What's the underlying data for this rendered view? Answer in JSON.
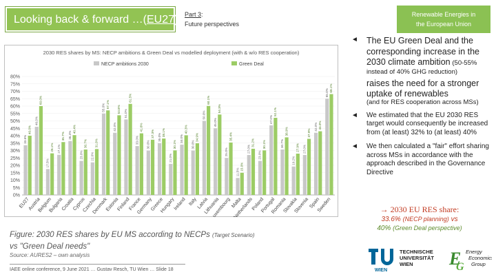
{
  "header": {
    "title_prefix": "Looking back & forward …(",
    "title_ticker": "EU27",
    "title_suffix": ")",
    "part_number": "Part 3",
    "part_colon": ":",
    "part_subtitle": "Future perspectives",
    "right_box_line1": "Renewable Energies in",
    "right_box_line2": "the European Union"
  },
  "colors": {
    "necp": "#c8c8c8",
    "green_deal": "#9ccc65",
    "title_green": "#92c353",
    "accent_red": "#c23b22",
    "accent_green": "#5c8a2a"
  },
  "chart_data": {
    "type": "bar",
    "title": "2030 RES shares by MS: NECP ambitions & Green Deal vs modelled deployment (with & w/o RES cooperation)",
    "legend_position": "top",
    "ylim": [
      0,
      80
    ],
    "yticks": [
      "0%",
      "5%",
      "10%",
      "15%",
      "20%",
      "25%",
      "30%",
      "35%",
      "40%",
      "45%",
      "50%",
      "55%",
      "60%",
      "65%",
      "70%",
      "75%",
      "80%"
    ],
    "categories": [
      "EU27",
      "Austria",
      "Belgium",
      "Bulgaria",
      "Croatia",
      "Cyprus",
      "Czechia",
      "Denmark",
      "Estonia",
      "Finland",
      "France",
      "Germany",
      "Greece",
      "Hungary",
      "Ireland",
      "Italy",
      "Latvia",
      "Lithuania",
      "Luxembourg",
      "Malta",
      "Netherlands",
      "Poland",
      "Portugal",
      "Romania",
      "Slovakia",
      "Slovenia",
      "Spain",
      "Sweden"
    ],
    "series": [
      {
        "name": "NECP ambitions 2030",
        "values": [
          33.6,
          46.0,
          17.5,
          27.1,
          36.4,
          23.0,
          22.0,
          55.0,
          42.0,
          51.0,
          33.0,
          30.0,
          35.0,
          21.0,
          34.0,
          30.0,
          50.0,
          45.0,
          25.0,
          11.5,
          27.0,
          23.0,
          47.0,
          30.7,
          19.2,
          27.0,
          42.0,
          65.0
        ]
      },
      {
        "name": "Green Deal",
        "values": [
          40.0,
          60.0,
          28.1,
          35.7,
          40.4,
          30.7,
          31.0,
          57.1,
          53.8,
          61.5,
          41.6,
          37.3,
          38.1,
          30.1,
          40.3,
          34.9,
          60.1,
          54.3,
          35.4,
          15.0,
          31.2,
          30.1,
          52.1,
          38.9,
          27.9,
          37.9,
          43.0,
          68.1
        ]
      }
    ],
    "data_labels": {
      "necp": [
        "33.6%",
        "46.0%",
        "17.5%",
        "27.1%",
        "36.4%",
        "23.0%",
        "22.0%",
        "55.0%",
        "42.0%",
        "51.0%",
        "33.0%",
        "30.0%",
        "35.0%",
        "21.0%",
        "34.0%",
        "30.0%",
        "50.0%",
        "45.0%",
        "25.0%",
        "11.5%",
        "27.0%",
        "23.0%",
        "47.0%",
        "30.7%",
        "19.2%",
        "27.0%",
        "42.0%",
        "65.0%"
      ],
      "green_deal": [
        "40.0%",
        "60.0%",
        "28.1%",
        "35.7%",
        "40.4%",
        "30.7%",
        "31.0%",
        "57.1%",
        "53.8%",
        "61.5%",
        "41.6%",
        "37.3%",
        "38.1%",
        "30.1%",
        "40.3%",
        "34.9%",
        "60.1%",
        "54.3%",
        "35.4%",
        "15.0%",
        "31.2%",
        "30.1%",
        "52.1%",
        "38.9%",
        "27.9%",
        "37.9%",
        "43.0%",
        "68.1%"
      ]
    }
  },
  "caption": {
    "line1": "Figure: 2030 RES shares by EU MS according to NECPs",
    "scenario": "(Target Scenario)",
    "line2": "vs \"Green Deal needs\"",
    "source": "Source: AURES2 – own analysis",
    "footer": "IAEE online conference, 9 June 2021 … Gustav Resch, TU Wien … Slide 18"
  },
  "bullets": {
    "arrow": "◄",
    "b1_main": "The EU Green Deal and the corresponding increase in the 2030 climate ambition",
    "b1_paren": "(50-55% instead of 40% GHG reduction)",
    "b1_emph": "raises the need for a stronger uptake of renewables",
    "b1_tail": "(and for RES cooperation across MSs)",
    "b2": "We estimated that the EU 2030 RES target would consequently be increased from (at least) 32% to (at least) 40%",
    "b3": "We then calculated a \"fair\" effort sharing across MSs in accordance with the approach described in the Governance Directive"
  },
  "summary": {
    "head": "→  2030 EU RES share:",
    "v1": "33.6%",
    "l1": "(NECP planning)",
    "vs": "vs",
    "v2": "40%",
    "l2": "(Green Deal perspective)"
  },
  "logos": {
    "tu_line1": "TECHNISCHE",
    "tu_line2": "UNIVERSITÄT",
    "tu_line3": "WIEN",
    "eeg_line1": "Energy",
    "eeg_line2": "Economics",
    "eeg_line3": "Group"
  }
}
